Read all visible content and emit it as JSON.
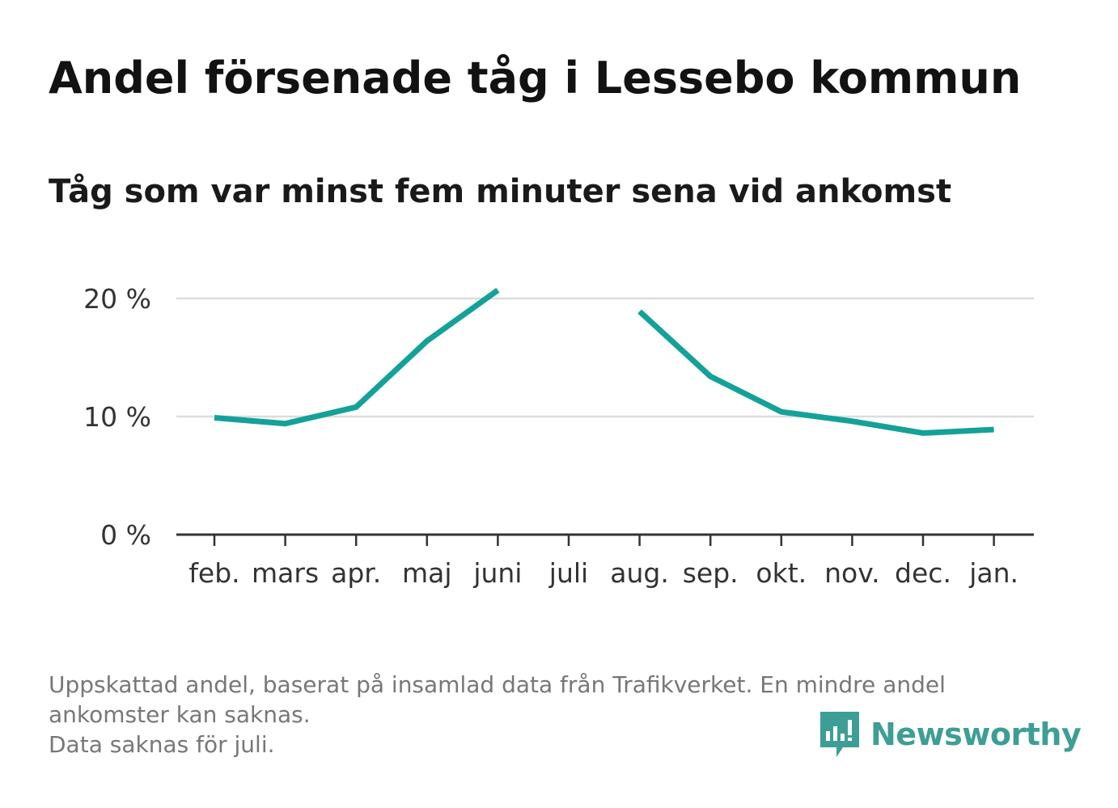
{
  "title": "Andel försenade tåg i Lessebo kommun",
  "subtitle": "Tåg som var minst fem minuter sena vid ankomst",
  "chart_data": {
    "type": "line",
    "categories": [
      "feb.",
      "mars",
      "apr.",
      "maj",
      "juni",
      "juli",
      "aug.",
      "sep.",
      "okt.",
      "nov.",
      "dec.",
      "jan."
    ],
    "series": [
      {
        "values": [
          9.9,
          9.4,
          10.8,
          16.4,
          20.7,
          null,
          18.9,
          13.4,
          10.4,
          9.6,
          8.6,
          8.9
        ]
      }
    ],
    "yticks": [
      0,
      10,
      20
    ],
    "ytick_labels": [
      "0 %",
      "10 %",
      "20 %"
    ],
    "ylim": [
      0,
      21
    ],
    "grid": true,
    "line_color": "#14a199"
  },
  "footnote": {
    "line1": "Uppskattad andel, baserat på insamlad data från Trafikverket. En mindre andel",
    "line2": "ankomster kan saknas.",
    "line3": "Data saknas för juli."
  },
  "brand": {
    "name": "Newsworthy",
    "icon": "newsworthy-logo-icon",
    "color": "#3d9e95"
  }
}
